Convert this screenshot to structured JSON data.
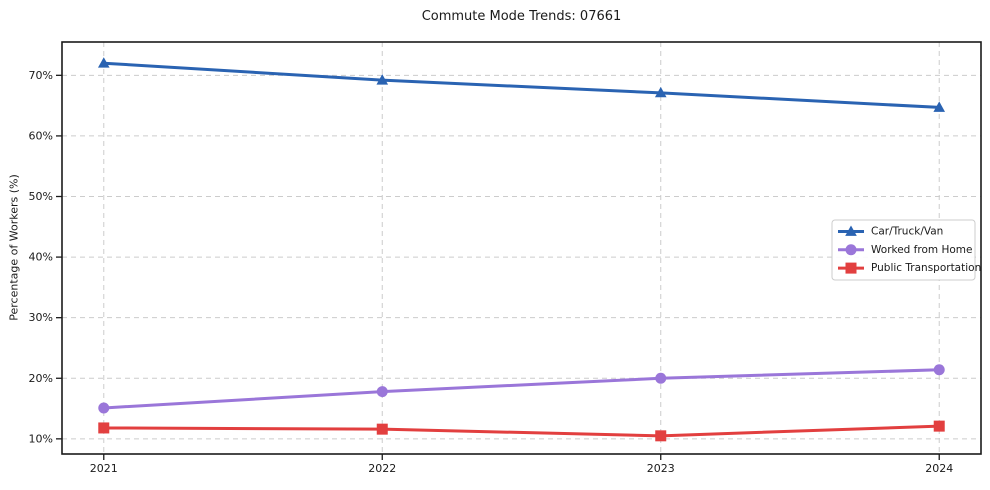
{
  "chart_data": {
    "type": "line",
    "title": "Commute Mode Trends: 07661",
    "xlabel": "",
    "ylabel": "Percentage of Workers (%)",
    "x": [
      2021,
      2022,
      2023,
      2024
    ],
    "x_tick_labels": [
      "2021",
      "2022",
      "2023",
      "2024"
    ],
    "y_ticks": [
      10,
      20,
      30,
      40,
      50,
      60,
      70
    ],
    "y_tick_suffix": "%",
    "xlim": [
      2020.85,
      2024.15
    ],
    "ylim": [
      7.5,
      75.5
    ],
    "grid": true,
    "grid_style": "dashed",
    "legend_position": "center-right",
    "series": [
      {
        "name": "Car/Truck/Van",
        "marker": "triangle",
        "color": "#2a63b2",
        "values": [
          72.0,
          69.2,
          67.1,
          64.7
        ]
      },
      {
        "name": "Worked from Home",
        "marker": "circle",
        "color": "#9a76d9",
        "values": [
          15.1,
          17.8,
          20.0,
          21.4
        ]
      },
      {
        "name": "Public Transportation",
        "marker": "square",
        "color": "#e23f3f",
        "values": [
          11.8,
          11.6,
          10.5,
          12.1
        ]
      }
    ],
    "colors": {
      "background": "#ffffff",
      "grid": "#cccccc",
      "axis": "#1a1a1a",
      "text": "#1a1a1a",
      "legend_border": "#cccccc",
      "legend_background": "#ffffff"
    }
  }
}
